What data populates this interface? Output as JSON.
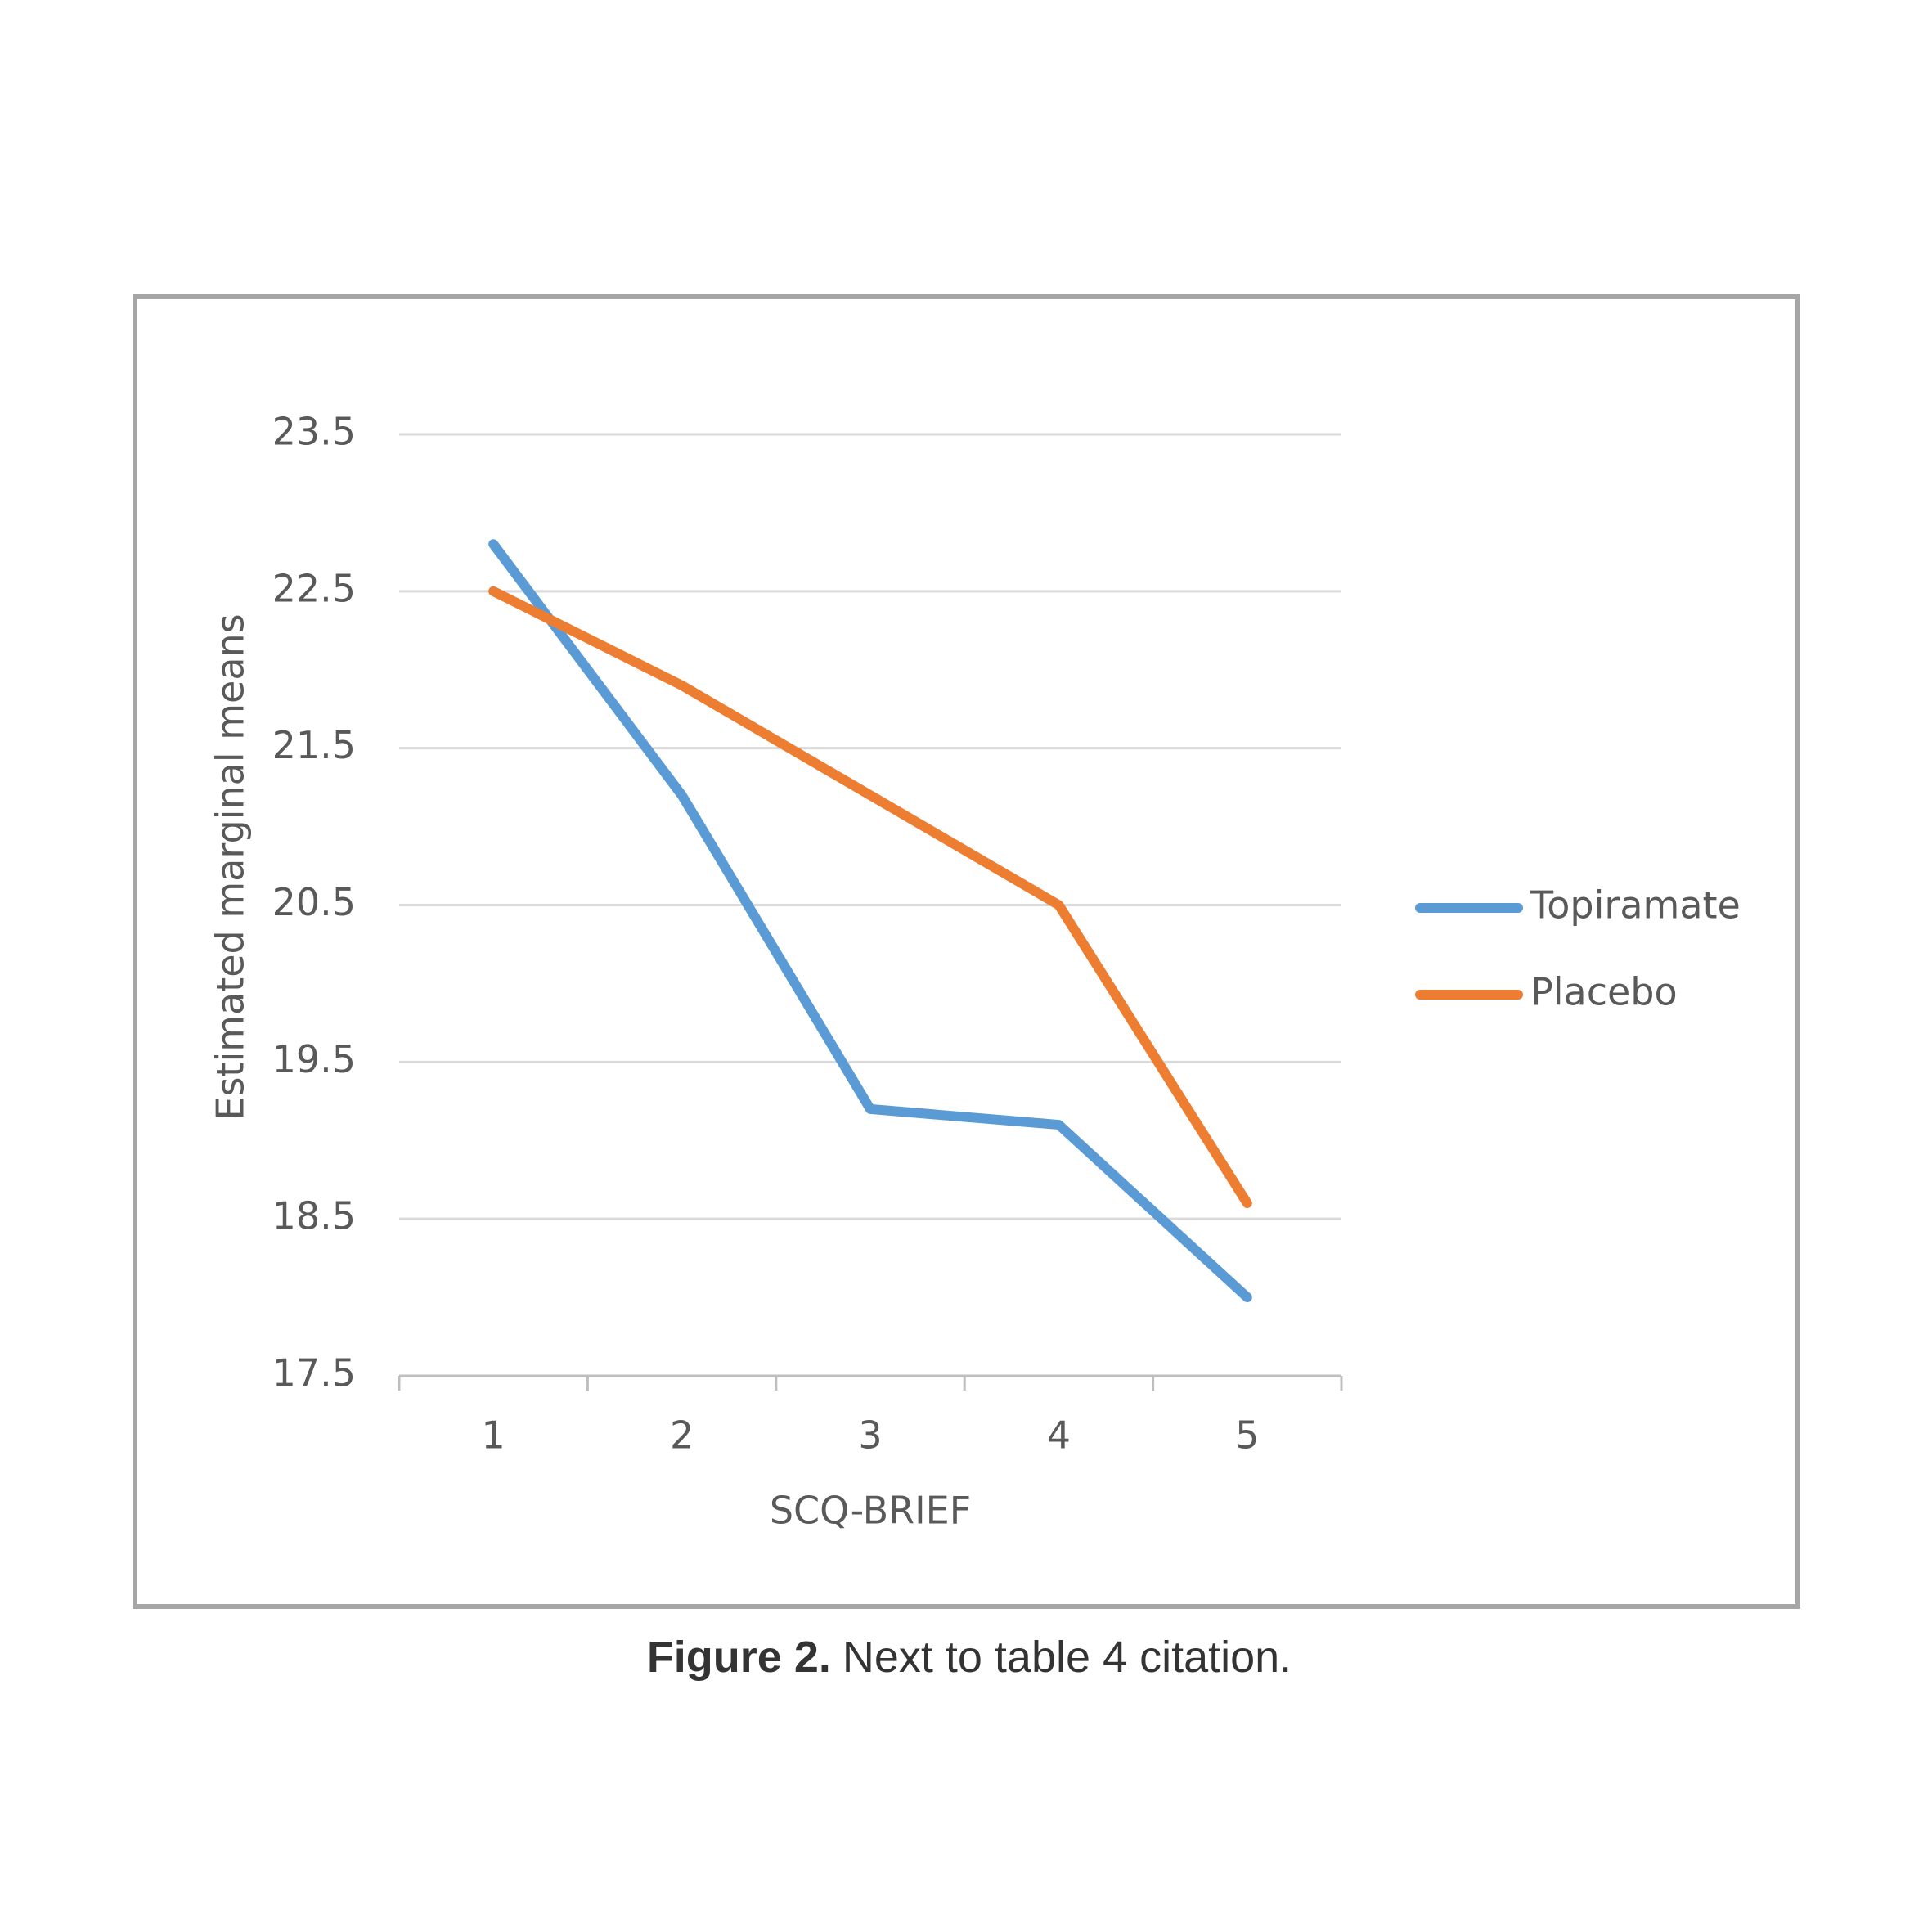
{
  "chart_data": {
    "type": "line",
    "x_label": "SCQ-BRIEF",
    "y_label": "Estimated marginal means",
    "categories": [
      "1",
      "2",
      "3",
      "4",
      "5"
    ],
    "series": [
      {
        "name": "Topiramate",
        "color": "#5b9bd5",
        "values": [
          22.8,
          21.2,
          19.2,
          19.1,
          18.0
        ]
      },
      {
        "name": "Placebo",
        "color": "#ed7d31",
        "values": [
          22.5,
          21.9,
          21.2,
          20.5,
          18.6
        ]
      }
    ],
    "ylim": [
      17.5,
      23.5
    ],
    "yticks": [
      17.5,
      18.5,
      19.5,
      20.5,
      21.5,
      22.5,
      23.5
    ],
    "grid": true,
    "legend": "right"
  },
  "caption": {
    "label": "Figure 2.",
    "text": "Next to table 4 citation."
  }
}
